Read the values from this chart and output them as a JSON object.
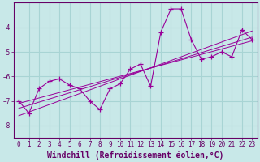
{
  "title": "",
  "xlabel": "Windchill (Refroidissement éolien,°C)",
  "ylabel": "",
  "bg_color": "#c8e8e8",
  "grid_color": "#a8d4d4",
  "line_color": "#990099",
  "xlim": [
    -0.5,
    23.5
  ],
  "ylim": [
    -8.5,
    -3.0
  ],
  "yticks": [
    -8,
    -7,
    -6,
    -5,
    -4
  ],
  "xticks": [
    0,
    1,
    2,
    3,
    4,
    5,
    6,
    7,
    8,
    9,
    10,
    11,
    12,
    13,
    14,
    15,
    16,
    17,
    18,
    19,
    20,
    21,
    22,
    23
  ],
  "scatter_x": [
    0,
    1,
    2,
    3,
    4,
    5,
    6,
    7,
    8,
    9,
    10,
    11,
    12,
    13,
    14,
    15,
    16,
    17,
    18,
    19,
    20,
    21,
    22,
    23
  ],
  "scatter_y": [
    -7.0,
    -7.5,
    -6.5,
    -6.2,
    -6.1,
    -6.35,
    -6.5,
    -7.0,
    -7.35,
    -6.5,
    -6.3,
    -5.7,
    -5.5,
    -6.4,
    -4.2,
    -3.25,
    -3.25,
    -4.5,
    -5.3,
    -5.2,
    -5.0,
    -5.2,
    -4.1,
    -4.5
  ],
  "reg_lines": [
    {
      "x": [
        0,
        23
      ],
      "y": [
        -7.6,
        -4.15
      ]
    },
    {
      "x": [
        0,
        23
      ],
      "y": [
        -7.3,
        -4.4
      ]
    },
    {
      "x": [
        0,
        23
      ],
      "y": [
        -7.1,
        -4.55
      ]
    }
  ],
  "font_color": "#660066",
  "tick_fontsize": 5.5,
  "xlabel_fontsize": 7
}
